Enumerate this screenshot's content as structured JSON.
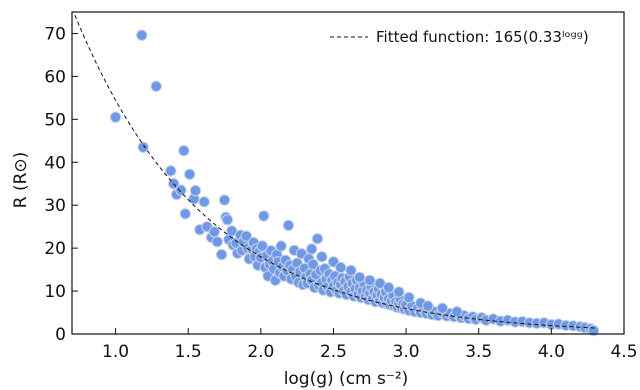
{
  "chart_data": {
    "type": "scatter",
    "xlabel": "log(g) (cm s⁻²)",
    "ylabel": "R (R⊙)",
    "xlim": [
      0.7,
      4.5
    ],
    "ylim": [
      0,
      75
    ],
    "xticks": [
      1.0,
      1.5,
      2.0,
      2.5,
      3.0,
      3.5,
      4.0,
      4.5
    ],
    "yticks": [
      0,
      10,
      20,
      30,
      40,
      50,
      60,
      70
    ],
    "grid": false,
    "legend_placement": "top-right",
    "series": [
      {
        "kind": "scatter",
        "color": "#6f98e6",
        "points": [
          [
            1.0,
            50.5
          ],
          [
            1.18,
            69.6
          ],
          [
            1.19,
            43.5
          ],
          [
            1.28,
            57.7
          ],
          [
            1.38,
            38.0
          ],
          [
            1.4,
            35.0
          ],
          [
            1.42,
            32.5
          ],
          [
            1.45,
            33.5
          ],
          [
            1.47,
            42.7
          ],
          [
            1.48,
            28.0
          ],
          [
            1.51,
            37.2
          ],
          [
            1.54,
            31.5
          ],
          [
            1.55,
            33.4
          ],
          [
            1.58,
            24.3
          ],
          [
            1.61,
            30.8
          ],
          [
            1.63,
            25.0
          ],
          [
            1.66,
            22.5
          ],
          [
            1.68,
            23.8
          ],
          [
            1.7,
            21.5
          ],
          [
            1.73,
            18.5
          ],
          [
            1.75,
            31.2
          ],
          [
            1.76,
            27.2
          ],
          [
            1.77,
            26.6
          ],
          [
            1.78,
            22.0
          ],
          [
            1.8,
            24.0
          ],
          [
            1.81,
            20.7
          ],
          [
            1.83,
            21.2
          ],
          [
            1.84,
            18.8
          ],
          [
            1.86,
            23.0
          ],
          [
            1.87,
            19.5
          ],
          [
            1.88,
            21.5
          ],
          [
            1.9,
            22.8
          ],
          [
            1.91,
            20.0
          ],
          [
            1.92,
            17.5
          ],
          [
            1.94,
            19.8
          ],
          [
            1.95,
            21.3
          ],
          [
            1.96,
            18.0
          ],
          [
            1.97,
            19.8
          ],
          [
            1.98,
            16.0
          ],
          [
            1.99,
            19.2
          ],
          [
            2.0,
            17.8
          ],
          [
            2.01,
            20.5
          ],
          [
            2.02,
            27.5
          ],
          [
            2.03,
            15.5
          ],
          [
            2.04,
            18.2
          ],
          [
            2.05,
            13.5
          ],
          [
            2.06,
            16.2
          ],
          [
            2.07,
            19.4
          ],
          [
            2.08,
            17.0
          ],
          [
            2.09,
            15.2
          ],
          [
            2.1,
            12.5
          ],
          [
            2.11,
            18.5
          ],
          [
            2.12,
            16.8
          ],
          [
            2.13,
            14.2
          ],
          [
            2.14,
            20.5
          ],
          [
            2.15,
            15.7
          ],
          [
            2.16,
            13.5
          ],
          [
            2.17,
            17.2
          ],
          [
            2.18,
            14.8
          ],
          [
            2.19,
            25.3
          ],
          [
            2.2,
            16.0
          ],
          [
            2.21,
            12.8
          ],
          [
            2.22,
            15.0
          ],
          [
            2.23,
            19.5
          ],
          [
            2.24,
            13.5
          ],
          [
            2.25,
            16.5
          ],
          [
            2.26,
            12.0
          ],
          [
            2.27,
            14.5
          ],
          [
            2.28,
            18.7
          ],
          [
            2.29,
            11.5
          ],
          [
            2.3,
            15.3
          ],
          [
            2.31,
            13.2
          ],
          [
            2.32,
            11.8
          ],
          [
            2.33,
            17.5
          ],
          [
            2.34,
            14.0
          ],
          [
            2.35,
            12.5
          ],
          [
            2.36,
            16.2
          ],
          [
            2.37,
            10.8
          ],
          [
            2.38,
            13.8
          ],
          [
            2.39,
            22.2
          ],
          [
            2.4,
            11.3
          ],
          [
            2.41,
            14.8
          ],
          [
            2.42,
            12.0
          ],
          [
            2.43,
            10.2
          ],
          [
            2.44,
            15.2
          ],
          [
            2.45,
            12.8
          ],
          [
            2.46,
            11.0
          ],
          [
            2.47,
            14.0
          ],
          [
            2.48,
            9.8
          ],
          [
            2.49,
            12.5
          ],
          [
            2.5,
            11.2
          ],
          [
            2.51,
            13.5
          ],
          [
            2.52,
            10.2
          ],
          [
            2.53,
            12.0
          ],
          [
            2.54,
            9.5
          ],
          [
            2.55,
            11.5
          ],
          [
            2.56,
            13.0
          ],
          [
            2.57,
            10.0
          ],
          [
            2.58,
            12.2
          ],
          [
            2.59,
            9.2
          ],
          [
            2.6,
            11.0
          ],
          [
            2.61,
            13.3
          ],
          [
            2.62,
            9.8
          ],
          [
            2.63,
            11.8
          ],
          [
            2.64,
            8.8
          ],
          [
            2.65,
            10.5
          ],
          [
            2.66,
            12.5
          ],
          [
            2.67,
            9.2
          ],
          [
            2.68,
            10.8
          ],
          [
            2.69,
            8.5
          ],
          [
            2.7,
            10.0
          ],
          [
            2.71,
            11.8
          ],
          [
            2.72,
            8.8
          ],
          [
            2.73,
            10.2
          ],
          [
            2.74,
            8.0
          ],
          [
            2.75,
            9.5
          ],
          [
            2.76,
            11.0
          ],
          [
            2.77,
            8.3
          ],
          [
            2.78,
            9.8
          ],
          [
            2.79,
            7.5
          ],
          [
            2.8,
            9.0
          ],
          [
            2.81,
            10.5
          ],
          [
            2.82,
            7.8
          ],
          [
            2.83,
            9.2
          ],
          [
            2.84,
            7.2
          ],
          [
            2.85,
            8.5
          ],
          [
            2.86,
            9.8
          ],
          [
            2.87,
            7.0
          ],
          [
            2.88,
            8.2
          ],
          [
            2.89,
            6.8
          ],
          [
            2.9,
            7.8
          ],
          [
            2.91,
            9.0
          ],
          [
            2.92,
            6.5
          ],
          [
            2.93,
            7.5
          ],
          [
            2.94,
            6.2
          ],
          [
            2.95,
            7.2
          ],
          [
            2.96,
            8.2
          ],
          [
            2.97,
            6.0
          ],
          [
            2.98,
            7.0
          ],
          [
            2.99,
            5.8
          ],
          [
            3.0,
            6.8
          ],
          [
            3.02,
            5.5
          ],
          [
            3.04,
            6.5
          ],
          [
            3.06,
            5.2
          ],
          [
            3.08,
            6.0
          ],
          [
            3.1,
            5.0
          ],
          [
            3.12,
            5.8
          ],
          [
            3.14,
            4.8
          ],
          [
            3.16,
            5.5
          ],
          [
            3.18,
            4.5
          ],
          [
            3.2,
            5.2
          ],
          [
            3.22,
            4.3
          ],
          [
            3.25,
            5.0
          ],
          [
            3.28,
            4.2
          ],
          [
            3.3,
            4.8
          ],
          [
            3.33,
            4.0
          ],
          [
            3.36,
            4.5
          ],
          [
            3.38,
            3.8
          ],
          [
            3.4,
            4.3
          ],
          [
            3.43,
            3.6
          ],
          [
            3.46,
            4.0
          ],
          [
            3.48,
            3.4
          ],
          [
            3.52,
            3.8
          ],
          [
            3.55,
            3.2
          ],
          [
            3.6,
            3.5
          ],
          [
            3.65,
            3.0
          ],
          [
            3.7,
            3.2
          ],
          [
            3.75,
            2.8
          ],
          [
            3.8,
            2.9
          ],
          [
            3.85,
            2.6
          ],
          [
            3.9,
            2.5
          ],
          [
            3.95,
            2.6
          ],
          [
            4.0,
            2.2
          ],
          [
            4.05,
            2.3
          ],
          [
            4.1,
            2.0
          ],
          [
            4.15,
            1.9
          ],
          [
            4.2,
            1.7
          ],
          [
            4.23,
            1.5
          ],
          [
            4.27,
            1.2
          ],
          [
            4.29,
            0.8
          ],
          [
            2.35,
            19.8
          ],
          [
            2.42,
            18.0
          ],
          [
            2.5,
            16.8
          ],
          [
            2.55,
            15.5
          ],
          [
            2.62,
            14.8
          ],
          [
            2.68,
            13.2
          ],
          [
            2.75,
            12.5
          ],
          [
            2.82,
            11.8
          ],
          [
            2.88,
            10.8
          ],
          [
            2.95,
            9.8
          ],
          [
            3.02,
            8.5
          ],
          [
            3.1,
            7.2
          ],
          [
            3.15,
            6.5
          ],
          [
            3.25,
            6.0
          ],
          [
            3.35,
            5.2
          ]
        ]
      },
      {
        "kind": "line",
        "name": "Fitted function: 165(0.33ˡᵒᵍᵍ)",
        "color": "#111111",
        "style": "dashed",
        "function": "165*0.33^x"
      }
    ]
  }
}
